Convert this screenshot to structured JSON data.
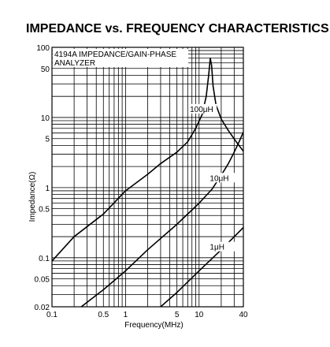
{
  "chart_data": {
    "type": "line",
    "title": "IMPEDANCE vs. FREQUENCY CHARACTERISTICS",
    "xlabel": "Frequency(MHz)",
    "ylabel": "Impedance(Ω)",
    "x_scale": "log",
    "y_scale": "log",
    "xlim": [
      0.1,
      40
    ],
    "ylim": [
      0.02,
      100
    ],
    "grid": true,
    "x_ticks": [
      {
        "value": 0.1,
        "label": "0.1"
      },
      {
        "value": 0.5,
        "label": "0.5"
      },
      {
        "value": 1,
        "label": "1"
      },
      {
        "value": 5,
        "label": "5"
      },
      {
        "value": 10,
        "label": "10"
      },
      {
        "value": 40,
        "label": "40"
      }
    ],
    "y_ticks": [
      {
        "value": 0.02,
        "label": "0.02"
      },
      {
        "value": 0.05,
        "label": "0.05"
      },
      {
        "value": 0.1,
        "label": "0.1"
      },
      {
        "value": 0.5,
        "label": "0.5"
      },
      {
        "value": 1,
        "label": "1"
      },
      {
        "value": 5,
        "label": "5"
      },
      {
        "value": 10,
        "label": "10"
      },
      {
        "value": 50,
        "label": "50"
      },
      {
        "value": 100,
        "label": "100"
      }
    ],
    "annotation": {
      "lines": [
        "4194A IMPEDANCE/GAIN-PHASE",
        "ANALYZER"
      ]
    },
    "series": [
      {
        "name": "100μH",
        "label_at": {
          "x": 7.5,
          "y": 12
        },
        "points": [
          [
            0.1,
            0.09
          ],
          [
            0.2,
            0.2
          ],
          [
            0.5,
            0.42
          ],
          [
            1,
            0.9
          ],
          [
            2,
            1.55
          ],
          [
            3,
            2.2
          ],
          [
            5,
            3.2
          ],
          [
            7,
            4.5
          ],
          [
            9,
            7
          ],
          [
            11,
            11
          ],
          [
            12.5,
            20
          ],
          [
            13.5,
            40
          ],
          [
            14.2,
            70
          ],
          [
            14.8,
            55
          ],
          [
            15.5,
            28
          ],
          [
            17,
            15
          ],
          [
            20,
            9.5
          ],
          [
            25,
            6.5
          ],
          [
            32,
            4.5
          ],
          [
            40,
            3.3
          ]
        ]
      },
      {
        "name": "10μH",
        "label_at": {
          "x": 14,
          "y": 1.25
        },
        "points": [
          [
            0.25,
            0.02
          ],
          [
            0.5,
            0.035
          ],
          [
            1,
            0.065
          ],
          [
            2,
            0.13
          ],
          [
            5,
            0.3
          ],
          [
            10,
            0.6
          ],
          [
            15,
            0.95
          ],
          [
            20,
            1.5
          ],
          [
            25,
            2.2
          ],
          [
            30,
            3.2
          ],
          [
            35,
            4.5
          ],
          [
            40,
            6.2
          ]
        ]
      },
      {
        "name": "1μH",
        "label_at": {
          "x": 14,
          "y": 0.13
        },
        "points": [
          [
            3,
            0.02
          ],
          [
            5,
            0.032
          ],
          [
            10,
            0.065
          ],
          [
            20,
            0.13
          ],
          [
            40,
            0.27
          ]
        ]
      }
    ]
  }
}
